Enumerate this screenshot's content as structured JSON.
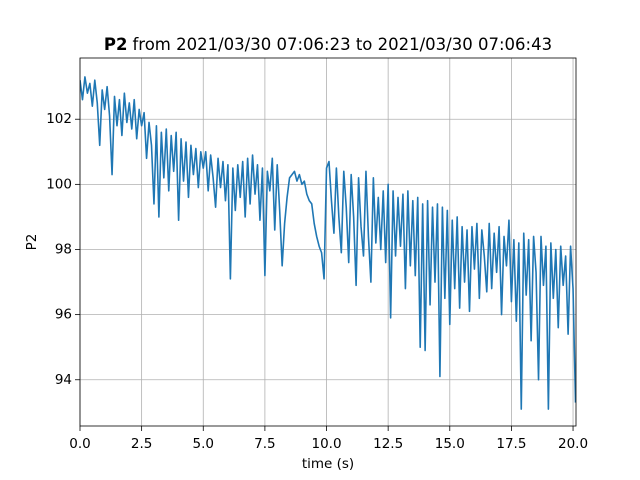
{
  "chart_data": {
    "type": "line",
    "title_parts": [
      "P2",
      "from 2021/03/30 07:06:23 to 2021/03/30 07:06:43"
    ],
    "x_label": "time (s)",
    "y_label": "P2",
    "xlim": [
      0,
      20.12
    ],
    "ylim": [
      92.58,
      103.88
    ],
    "xticks": [
      {
        "value": 0,
        "label": "0.0"
      },
      2.5,
      {
        "value": 5,
        "label": "5.0"
      },
      7.5,
      {
        "value": 10,
        "label": "10.0"
      },
      12.5,
      {
        "value": 15,
        "label": "15.0"
      },
      17.5,
      {
        "value": 20,
        "label": "20.0"
      }
    ],
    "yticks": [
      94,
      96,
      98,
      100,
      102
    ],
    "grid": true,
    "series": [
      {
        "color": "#1f77b4",
        "x": [
          0.0,
          0.1,
          0.2,
          0.3,
          0.4,
          0.5,
          0.6,
          0.7,
          0.8,
          0.9,
          1.0,
          1.1,
          1.2,
          1.3,
          1.4,
          1.5,
          1.6,
          1.7,
          1.8,
          1.9,
          2.0,
          2.1,
          2.2,
          2.3,
          2.4,
          2.5,
          2.6,
          2.7,
          2.8,
          2.9,
          3.0,
          3.1,
          3.2,
          3.3,
          3.4,
          3.5,
          3.6,
          3.7,
          3.8,
          3.9,
          4.0,
          4.1,
          4.2,
          4.3,
          4.4,
          4.5,
          4.6,
          4.7,
          4.8,
          4.9,
          5.0,
          5.1,
          5.2,
          5.3,
          5.4,
          5.5,
          5.6,
          5.7,
          5.8,
          5.9,
          6.0,
          6.1,
          6.2,
          6.3,
          6.4,
          6.5,
          6.6,
          6.7,
          6.8,
          6.9,
          7.0,
          7.1,
          7.2,
          7.3,
          7.4,
          7.5,
          7.6,
          7.7,
          7.8,
          7.9,
          8.0,
          8.1,
          8.2,
          8.3,
          8.4,
          8.5,
          8.6,
          8.7,
          8.8,
          8.9,
          9.0,
          9.1,
          9.2,
          9.3,
          9.4,
          9.5,
          9.6,
          9.7,
          9.8,
          9.9,
          10.0,
          10.1,
          10.2,
          10.3,
          10.4,
          10.5,
          10.6,
          10.7,
          10.8,
          10.9,
          11.0,
          11.1,
          11.2,
          11.3,
          11.4,
          11.5,
          11.6,
          11.7,
          11.8,
          11.9,
          12.0,
          12.1,
          12.2,
          12.3,
          12.4,
          12.5,
          12.6,
          12.7,
          12.8,
          12.9,
          13.0,
          13.1,
          13.2,
          13.3,
          13.4,
          13.5,
          13.6,
          13.7,
          13.8,
          13.9,
          14.0,
          14.1,
          14.2,
          14.3,
          14.4,
          14.5,
          14.6,
          14.7,
          14.8,
          14.9,
          15.0,
          15.1,
          15.2,
          15.3,
          15.4,
          15.5,
          15.6,
          15.7,
          15.8,
          15.9,
          16.0,
          16.1,
          16.2,
          16.3,
          16.4,
          16.5,
          16.6,
          16.7,
          16.8,
          16.9,
          17.0,
          17.1,
          17.2,
          17.3,
          17.4,
          17.5,
          17.6,
          17.7,
          17.8,
          17.9,
          18.0,
          18.1,
          18.2,
          18.3,
          18.4,
          18.5,
          18.6,
          18.7,
          18.8,
          18.9,
          19.0,
          19.1,
          19.2,
          19.3,
          19.4,
          19.5,
          19.6,
          19.7,
          19.8,
          19.9,
          20.0,
          20.1
        ],
        "values": [
          103.2,
          102.6,
          103.3,
          102.8,
          103.1,
          102.4,
          103.2,
          102.5,
          101.2,
          102.9,
          102.3,
          103.0,
          102.1,
          100.3,
          102.7,
          101.8,
          102.6,
          101.5,
          102.8,
          101.9,
          102.5,
          101.7,
          102.6,
          101.4,
          102.3,
          101.8,
          102.2,
          100.8,
          101.9,
          101.2,
          99.4,
          101.8,
          99.0,
          101.6,
          100.2,
          101.7,
          99.8,
          101.5,
          100.4,
          101.6,
          98.9,
          101.4,
          100.1,
          101.3,
          99.6,
          101.2,
          100.3,
          101.1,
          99.9,
          101.0,
          100.5,
          101.0,
          99.8,
          100.9,
          100.2,
          99.3,
          100.8,
          99.9,
          100.7,
          99.5,
          100.6,
          97.1,
          100.5,
          99.2,
          100.6,
          99.6,
          100.7,
          99.0,
          100.8,
          99.4,
          100.9,
          99.7,
          100.6,
          98.9,
          100.5,
          97.2,
          100.4,
          99.8,
          100.8,
          98.6,
          100.6,
          99.2,
          97.5,
          98.8,
          99.6,
          100.2,
          100.3,
          100.4,
          100.1,
          100.3,
          100.0,
          100.1,
          99.7,
          99.5,
          99.4,
          98.8,
          98.4,
          98.1,
          97.9,
          97.1,
          100.5,
          100.7,
          99.5,
          98.5,
          100.5,
          99.0,
          97.9,
          100.4,
          99.3,
          97.6,
          100.3,
          99.0,
          96.9,
          100.2,
          98.7,
          97.8,
          100.4,
          98.4,
          97.0,
          100.2,
          98.2,
          99.6,
          98.0,
          99.8,
          97.6,
          100.0,
          95.9,
          99.8,
          97.8,
          99.6,
          98.1,
          99.7,
          96.8,
          99.8,
          97.5,
          99.5,
          97.2,
          99.6,
          95.0,
          99.4,
          94.9,
          99.5,
          96.3,
          99.3,
          97.0,
          99.4,
          94.1,
          99.3,
          96.5,
          99.2,
          95.7,
          98.9,
          96.8,
          99.0,
          96.2,
          98.7,
          97.0,
          98.6,
          96.1,
          98.7,
          97.4,
          98.8,
          96.5,
          98.6,
          97.8,
          96.7,
          98.8,
          96.8,
          98.5,
          97.3,
          98.7,
          96.0,
          98.4,
          97.5,
          98.9,
          96.4,
          98.3,
          95.8,
          98.2,
          93.1,
          98.5,
          96.6,
          98.3,
          95.2,
          98.4,
          97.3,
          94.0,
          98.4,
          96.9,
          98.1,
          93.1,
          98.2,
          96.5,
          98.0,
          95.6,
          98.1,
          96.9,
          97.8,
          95.4,
          98.1,
          96.8,
          93.3
        ]
      }
    ]
  }
}
